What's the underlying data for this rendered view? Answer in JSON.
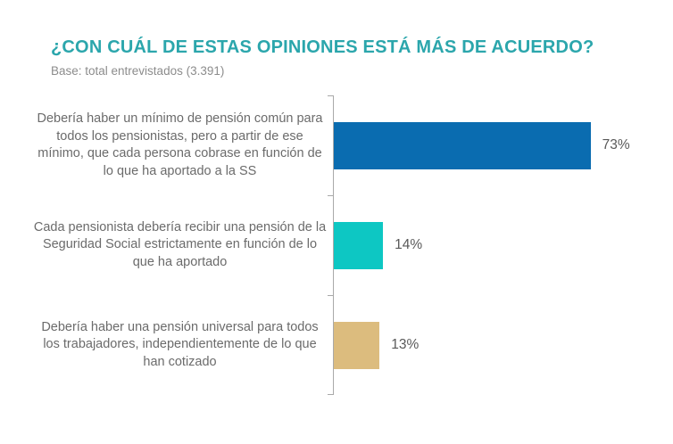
{
  "page": {
    "title": "¿CON CUÁL DE ESTAS OPINIONES ESTÁ MÁS DE ACUERDO?",
    "subtitle": "Base: total entrevistados (3.391)"
  },
  "colors": {
    "title_text": "#2BA6AC",
    "subtitle_text": "#8C8C8C",
    "category_label_text": "#6B6B6B",
    "value_label_text": "#595959",
    "axis_line": "#A9A9A9"
  },
  "chart_data": {
    "type": "bar",
    "orientation": "horizontal",
    "title": "¿CON CUÁL DE ESTAS OPINIONES ESTÁ MÁS DE ACUERDO?",
    "subtitle": "Base: total entrevistados (3.391)",
    "unit": "%",
    "xlim": [
      0,
      100
    ],
    "grid": false,
    "legend": false,
    "value_labels_position": "outside-end",
    "categories": [
      "Debería haber un mínimo de pensión común para todos los pensionistas, pero a partir de ese mínimo, que cada persona cobrase en función de lo que ha aportado a la SS",
      "Cada pensionista debería recibir una pensión de la Seguridad Social estrictamente en función de lo que ha aportado",
      "Debería haber una pensión universal para todos los trabajadores, independientemente de lo que han cotizado"
    ],
    "values": [
      73,
      14,
      13
    ],
    "value_labels": [
      "73%",
      "14%",
      "13%"
    ],
    "bar_colors": [
      "#0A6CB0",
      "#0DC7C3",
      "#DCBC7E"
    ]
  }
}
